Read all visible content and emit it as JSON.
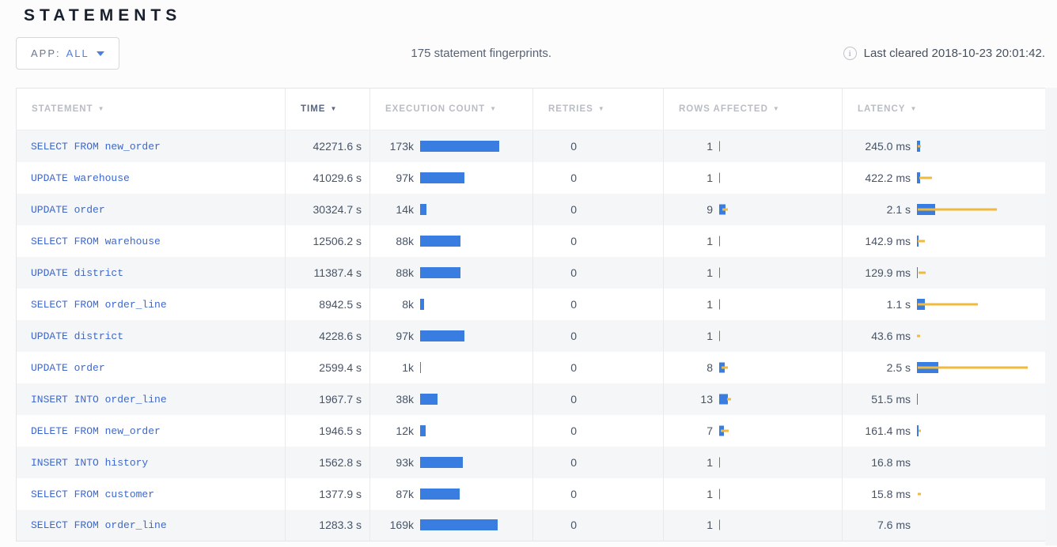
{
  "page": {
    "title": "STATEMENTS"
  },
  "toolbar": {
    "app_filter": {
      "label": "APP:",
      "value": "ALL"
    },
    "summary": "175 statement fingerprints.",
    "last_cleared": "Last cleared 2018-10-23 20:01:42.",
    "info_icon_glyph": "i"
  },
  "colors": {
    "bar_blue": "#3a7de0",
    "bar_yellow": "#f0ba3c",
    "link_blue": "#3e68cb",
    "accent_blue": "#4c7fe2"
  },
  "table": {
    "sort_arrow": "▼",
    "columns": [
      {
        "label": "STATEMENT",
        "sorted": false
      },
      {
        "label": "TIME",
        "sorted": true
      },
      {
        "label": "EXECUTION COUNT",
        "sorted": false
      },
      {
        "label": "RETRIES",
        "sorted": false
      },
      {
        "label": "ROWS AFFECTED",
        "sorted": false
      },
      {
        "label": "LATENCY",
        "sorted": false
      }
    ],
    "rows": [
      {
        "statement": "SELECT FROM new_order",
        "time": "42271.6 s",
        "count": "173k",
        "count_bar": 100,
        "retries": "0",
        "rows": "1",
        "rows_bar": 1,
        "rows_dev": [
          0,
          0
        ],
        "latency": "245.0 ms",
        "lat_bar": 4,
        "lat_dev": [
          1,
          4
        ]
      },
      {
        "statement": "UPDATE warehouse",
        "time": "41029.6 s",
        "count": "97k",
        "count_bar": 56,
        "retries": "0",
        "rows": "1",
        "rows_bar": 1,
        "rows_dev": [
          0,
          0
        ],
        "latency": "422.2 ms",
        "lat_bar": 4,
        "lat_dev": [
          3,
          16
        ]
      },
      {
        "statement": "UPDATE order",
        "time": "30324.7 s",
        "count": "14k",
        "count_bar": 8,
        "retries": "0",
        "rows": "9",
        "rows_bar": 8,
        "rows_dev": [
          4,
          7
        ],
        "latency": "2.1 s",
        "lat_bar": 23,
        "lat_dev": [
          1,
          100
        ]
      },
      {
        "statement": "SELECT FROM warehouse",
        "time": "12506.2 s",
        "count": "88k",
        "count_bar": 51,
        "retries": "0",
        "rows": "1",
        "rows_bar": 1,
        "rows_dev": [
          0,
          0
        ],
        "latency": "142.9 ms",
        "lat_bar": 2,
        "lat_dev": [
          1,
          9
        ]
      },
      {
        "statement": "UPDATE district",
        "time": "11387.4 s",
        "count": "88k",
        "count_bar": 51,
        "retries": "0",
        "rows": "1",
        "rows_bar": 1,
        "rows_dev": [
          0,
          0
        ],
        "latency": "129.9 ms",
        "lat_bar": 1,
        "lat_dev": [
          2,
          9
        ]
      },
      {
        "statement": "SELECT FROM order_line",
        "time": "8942.5 s",
        "count": "8k",
        "count_bar": 5,
        "retries": "0",
        "rows": "1",
        "rows_bar": 1,
        "rows_dev": [
          0,
          0
        ],
        "latency": "1.1 s",
        "lat_bar": 10,
        "lat_dev": [
          1,
          76
        ]
      },
      {
        "statement": "UPDATE district",
        "time": "4228.6 s",
        "count": "97k",
        "count_bar": 56,
        "retries": "0",
        "rows": "1",
        "rows_bar": 1,
        "rows_dev": [
          0,
          0
        ],
        "latency": "43.6 ms",
        "lat_bar": 0,
        "lat_dev": [
          0,
          4
        ]
      },
      {
        "statement": "UPDATE order",
        "time": "2599.4 s",
        "count": "1k",
        "count_bar": 1,
        "retries": "0",
        "rows": "8",
        "rows_bar": 7,
        "rows_dev": [
          3,
          8
        ],
        "latency": "2.5 s",
        "lat_bar": 27,
        "lat_dev": [
          1,
          139
        ]
      },
      {
        "statement": "INSERT INTO order_line",
        "time": "1967.7 s",
        "count": "38k",
        "count_bar": 22,
        "retries": "0",
        "rows": "13",
        "rows_bar": 11,
        "rows_dev": [
          10,
          5
        ],
        "latency": "51.5 ms",
        "lat_bar": 1,
        "lat_dev": [
          0,
          0
        ]
      },
      {
        "statement": "DELETE FROM new_order",
        "time": "1946.5 s",
        "count": "12k",
        "count_bar": 7,
        "retries": "0",
        "rows": "7",
        "rows_bar": 6,
        "rows_dev": [
          2,
          10
        ],
        "latency": "161.4 ms",
        "lat_bar": 2,
        "lat_dev": [
          2,
          3
        ]
      },
      {
        "statement": "INSERT INTO history",
        "time": "1562.8 s",
        "count": "93k",
        "count_bar": 54,
        "retries": "0",
        "rows": "1",
        "rows_bar": 1,
        "rows_dev": [
          0,
          0
        ],
        "latency": "16.8 ms",
        "lat_bar": 0,
        "lat_dev": [
          0,
          0
        ]
      },
      {
        "statement": "SELECT FROM customer",
        "time": "1377.9 s",
        "count": "87k",
        "count_bar": 50,
        "retries": "0",
        "rows": "1",
        "rows_bar": 1,
        "rows_dev": [
          0,
          0
        ],
        "latency": "15.8 ms",
        "lat_bar": 0,
        "lat_dev": [
          1,
          4
        ]
      },
      {
        "statement": "SELECT FROM order_line",
        "time": "1283.3 s",
        "count": "169k",
        "count_bar": 98,
        "retries": "0",
        "rows": "1",
        "rows_bar": 1,
        "rows_dev": [
          0,
          0
        ],
        "latency": "7.6 ms",
        "lat_bar": 0,
        "lat_dev": [
          0,
          0
        ]
      }
    ]
  }
}
